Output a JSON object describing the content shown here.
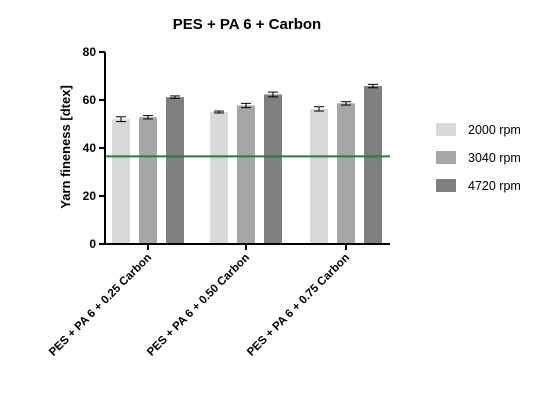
{
  "chart_data": {
    "type": "bar",
    "title": "PES + PA 6 + Carbon",
    "xlabel": "",
    "ylabel": "Yarn fineness [dtex]",
    "ylim": [
      0,
      80
    ],
    "yticks": [
      0,
      20,
      40,
      60,
      80
    ],
    "grid": false,
    "legend_position": "right",
    "categories": [
      "PES + PA 6 + 0.25 Carbon",
      "PES + PA 6 + 0.50 Carbon",
      "PES + PA 6 + 0.75 Carbon"
    ],
    "series": [
      {
        "name": "2000 rpm",
        "color": "#d9d9d9",
        "values": [
          52.0,
          55.0,
          56.3
        ],
        "errors": [
          1.0,
          0.4,
          0.9
        ]
      },
      {
        "name": "3040 rpm",
        "color": "#a6a6a6",
        "values": [
          52.8,
          57.7,
          58.6
        ],
        "errors": [
          0.7,
          0.9,
          0.7
        ]
      },
      {
        "name": "4720 rpm",
        "color": "#7f7f7f",
        "values": [
          61.2,
          62.3,
          65.8
        ],
        "errors": [
          0.5,
          1.0,
          0.7
        ]
      }
    ],
    "reference_line": {
      "value": 36.5,
      "color": "#2e7d32"
    }
  }
}
